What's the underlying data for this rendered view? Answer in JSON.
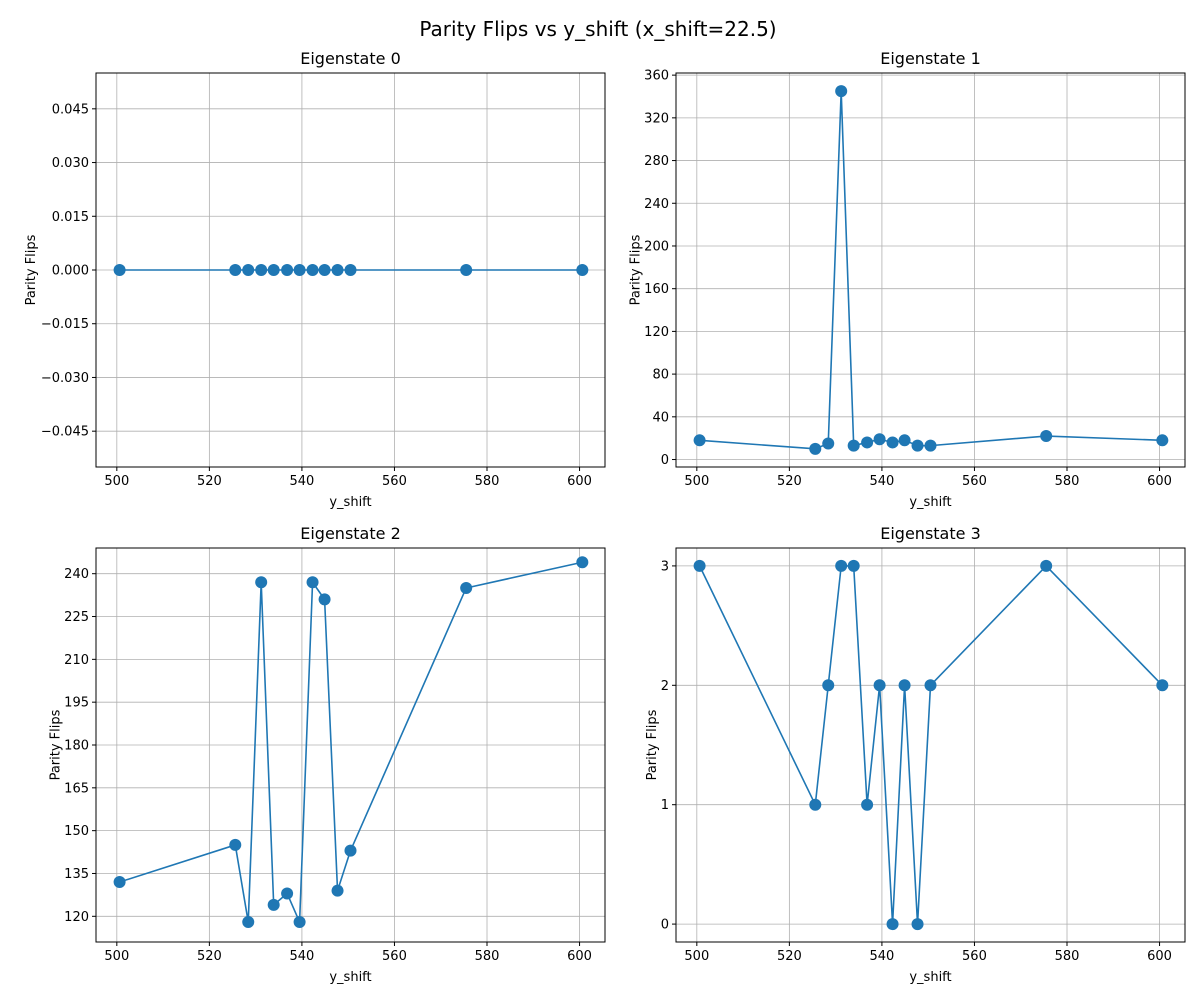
{
  "figure": {
    "suptitle": "Parity Flips vs y_shift (x_shift=22.5)",
    "line_color": "#1f77b4",
    "grid_color": "#b0b0b0"
  },
  "chart_data": [
    {
      "type": "line",
      "title": "Eigenstate 0",
      "xlabel": "y_shift",
      "ylabel": "Parity Flips",
      "xlim": [
        495.5,
        605.5
      ],
      "ylim": [
        -0.055,
        0.055
      ],
      "xticks": [
        500,
        520,
        540,
        560,
        580,
        600
      ],
      "yticks": [
        -0.045,
        -0.03,
        -0.015,
        0.0,
        0.015,
        0.03,
        0.045
      ],
      "ytick_labels": [
        "−0.045",
        "−0.030",
        "−0.015",
        "0.000",
        "0.015",
        "0.030",
        "0.045"
      ],
      "grid": true,
      "x": [
        500.6,
        525.6,
        528.4,
        531.2,
        533.9,
        536.8,
        539.5,
        542.3,
        544.9,
        547.7,
        550.5,
        575.5,
        600.6
      ],
      "y": [
        0,
        0,
        0,
        0,
        0,
        0,
        0,
        0,
        0,
        0,
        0,
        0,
        0
      ]
    },
    {
      "type": "line",
      "title": "Eigenstate 1",
      "xlabel": "y_shift",
      "ylabel": "Parity Flips",
      "xlim": [
        495.5,
        605.5
      ],
      "ylim": [
        -7,
        362
      ],
      "xticks": [
        500,
        520,
        540,
        560,
        580,
        600
      ],
      "yticks": [
        0,
        40,
        80,
        120,
        160,
        200,
        240,
        280,
        320,
        360
      ],
      "ytick_labels": [
        "0",
        "40",
        "80",
        "120",
        "160",
        "200",
        "240",
        "280",
        "320",
        "360"
      ],
      "grid": true,
      "x": [
        500.6,
        525.6,
        528.4,
        531.2,
        533.9,
        536.8,
        539.5,
        542.3,
        544.9,
        547.7,
        550.5,
        575.5,
        600.6
      ],
      "y": [
        18,
        10,
        15,
        345,
        13,
        16,
        19,
        16,
        18,
        13,
        13,
        22,
        18
      ]
    },
    {
      "type": "line",
      "title": "Eigenstate 2",
      "xlabel": "y_shift",
      "ylabel": "Parity Flips",
      "xlim": [
        495.5,
        605.5
      ],
      "ylim": [
        111,
        249
      ],
      "xticks": [
        500,
        520,
        540,
        560,
        580,
        600
      ],
      "yticks": [
        120,
        135,
        150,
        165,
        180,
        195,
        210,
        225,
        240
      ],
      "ytick_labels": [
        "120",
        "135",
        "150",
        "165",
        "180",
        "195",
        "210",
        "225",
        "240"
      ],
      "grid": true,
      "x": [
        500.6,
        525.6,
        528.4,
        531.2,
        533.9,
        536.8,
        539.5,
        542.3,
        544.9,
        547.7,
        550.5,
        575.5,
        600.6
      ],
      "y": [
        132,
        145,
        118,
        237,
        124,
        128,
        118,
        237,
        231,
        129,
        143,
        235,
        244
      ]
    },
    {
      "type": "line",
      "title": "Eigenstate 3",
      "xlabel": "y_shift",
      "ylabel": "Parity Flips",
      "xlim": [
        495.5,
        605.5
      ],
      "ylim": [
        -0.15,
        3.15
      ],
      "xticks": [
        500,
        520,
        540,
        560,
        580,
        600
      ],
      "yticks": [
        0,
        1,
        2,
        3
      ],
      "ytick_labels": [
        "0",
        "1",
        "2",
        "3"
      ],
      "grid": true,
      "x": [
        500.6,
        525.6,
        528.4,
        531.2,
        533.9,
        536.8,
        539.5,
        542.3,
        544.9,
        547.7,
        550.5,
        575.5,
        600.6
      ],
      "y": [
        3,
        1,
        2,
        3,
        3,
        1,
        2,
        0,
        2,
        0,
        2,
        3,
        2
      ]
    }
  ]
}
